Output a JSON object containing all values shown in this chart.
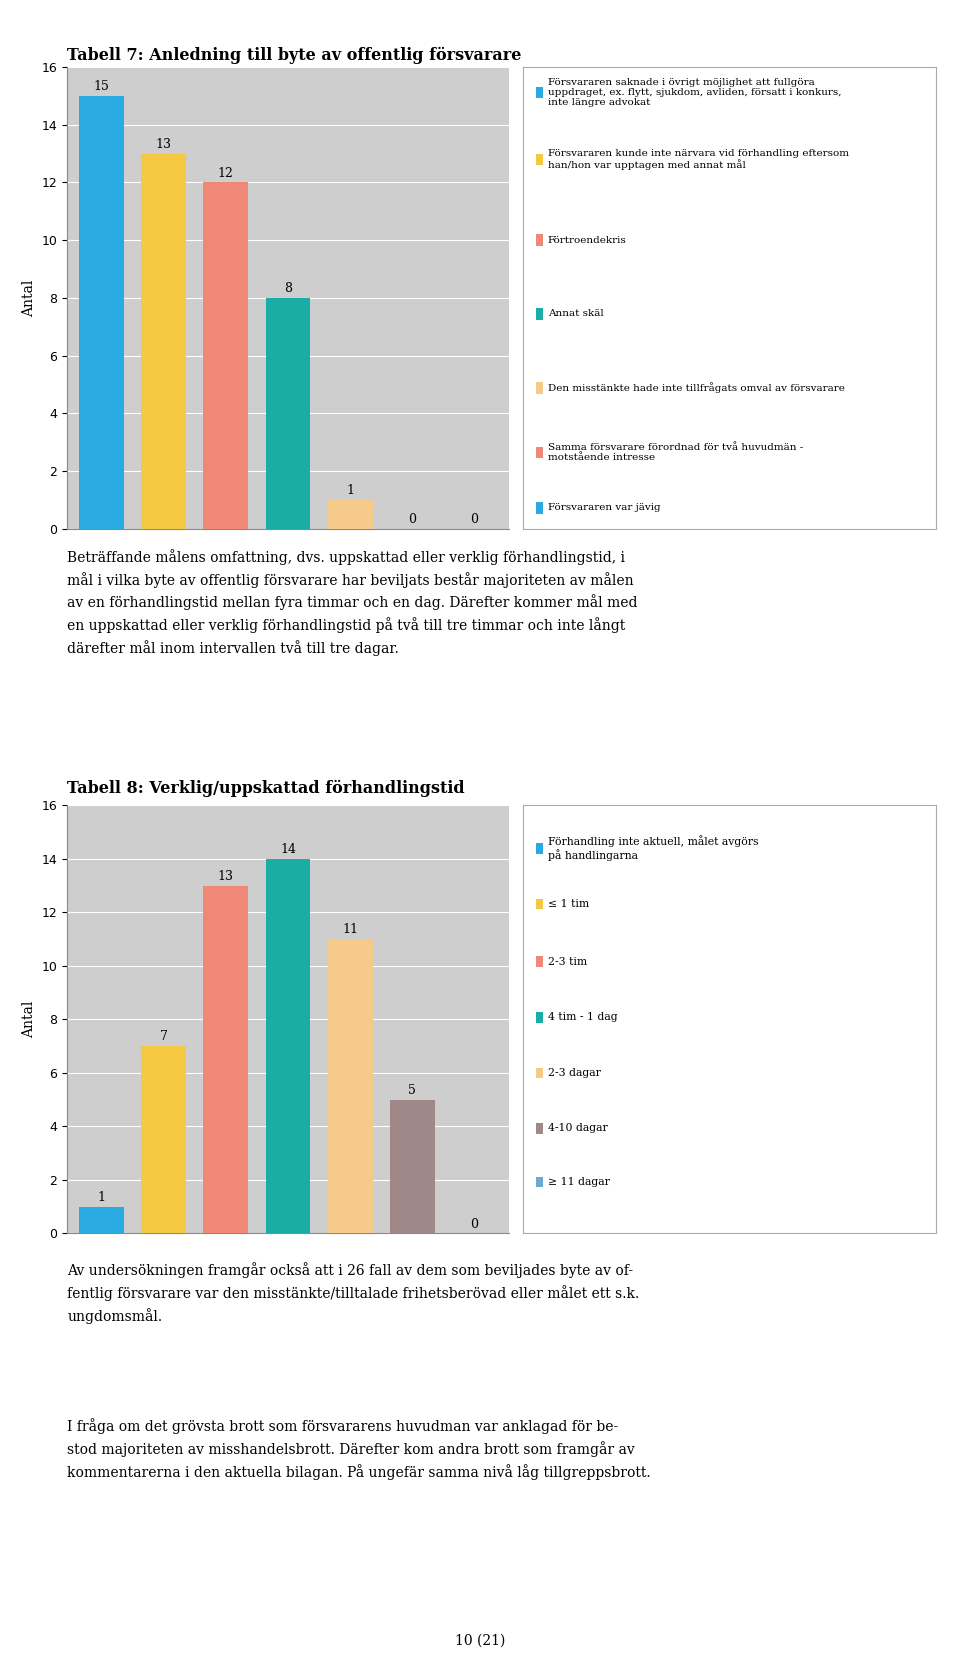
{
  "chart1": {
    "title": "Tabell 7: Anledning till byte av offentlig försvarare",
    "values": [
      15,
      13,
      12,
      8,
      1,
      0,
      0
    ],
    "bar_colors": [
      "#29ABE2",
      "#F5C842",
      "#F08878",
      "#1AADA4",
      "#F5CA8A",
      "#F08878",
      "#29ABE2"
    ],
    "ylim": [
      0,
      16
    ],
    "yticks": [
      0,
      2,
      4,
      6,
      8,
      10,
      12,
      14,
      16
    ],
    "ylabel": "Antal",
    "legend_labels": [
      "Försvararen saknade i övrigt möjlighet att fullgöra\nuppdraget, ex. flytt, sjukdom, avliden, försatt i konkurs,\ninte längre advokat",
      "Försvararen kunde inte närvara vid förhandling eftersom\nhan/hon var upptagen med annat mål",
      "Förtroendekris",
      "Annat skäl",
      "Den misstänkte hade inte tillfrågats omval av försvarare",
      "Samma försvarare förordnad för två huvudmän -\nmotstående intresse",
      "Försvararen var jävig"
    ],
    "legend_colors": [
      "#29ABE2",
      "#F5C842",
      "#F08878",
      "#1AADA4",
      "#F5CA8A",
      "#F08878",
      "#29ABE2"
    ]
  },
  "chart2": {
    "title": "Tabell 8: Verklig/uppskattad förhandlingstid",
    "values": [
      1,
      7,
      13,
      14,
      11,
      5,
      0
    ],
    "bar_colors": [
      "#29ABE2",
      "#F5C842",
      "#F08878",
      "#1AADA4",
      "#F5CA8A",
      "#A08888",
      "#6BAAD0"
    ],
    "ylim": [
      0,
      16
    ],
    "yticks": [
      0,
      2,
      4,
      6,
      8,
      10,
      12,
      14,
      16
    ],
    "ylabel": "Antal",
    "legend_labels": [
      "Förhandling inte aktuell, målet avgörs\npå handlingarna",
      "≤ 1 tim",
      "2-3 tim",
      "4 tim - 1 dag",
      "2-3 dagar",
      "4-10 dagar",
      "≥ 11 dagar"
    ],
    "legend_colors": [
      "#29ABE2",
      "#F5C842",
      "#F08878",
      "#1AADA4",
      "#F5CA8A",
      "#A08888",
      "#6BAAD0"
    ]
  },
  "text1": "Beträffande målens omfattning, dvs. uppskattad eller verklig förhandlingstid, i\nmål i vilka byte av offentlig försvarare har beviljats består majoriteten av målen\nav en förhandlingstid mellan fyra timmar och en dag. Därefter kommer mål med\nen uppskattad eller verklig förhandlingstid på två till tre timmar och inte långt\ndärefter mål inom intervallen två till tre dagar.",
  "text2": "Av undersökningen framgår också att i 26 fall av dem som beviljades byte av of-\nfentlig försvarare var den misstänkte/tilltalade frihetsberövad eller målet ett s.k.\nungdomsmål.",
  "text3": "I fråga om det grövsta brott som försvararens huvudman var anklagad för be-\nstod majoriteten av misshandelsbrott. Därefter kom andra brott som framgår av\nkommentarerna i den aktuella bilagan. På ungefär samma nivå låg tillgreppsbrott.",
  "page_number": "10 (21)",
  "background_color": "#FFFFFF",
  "chart_bg_color": "#CECECE",
  "font_family": "serif"
}
